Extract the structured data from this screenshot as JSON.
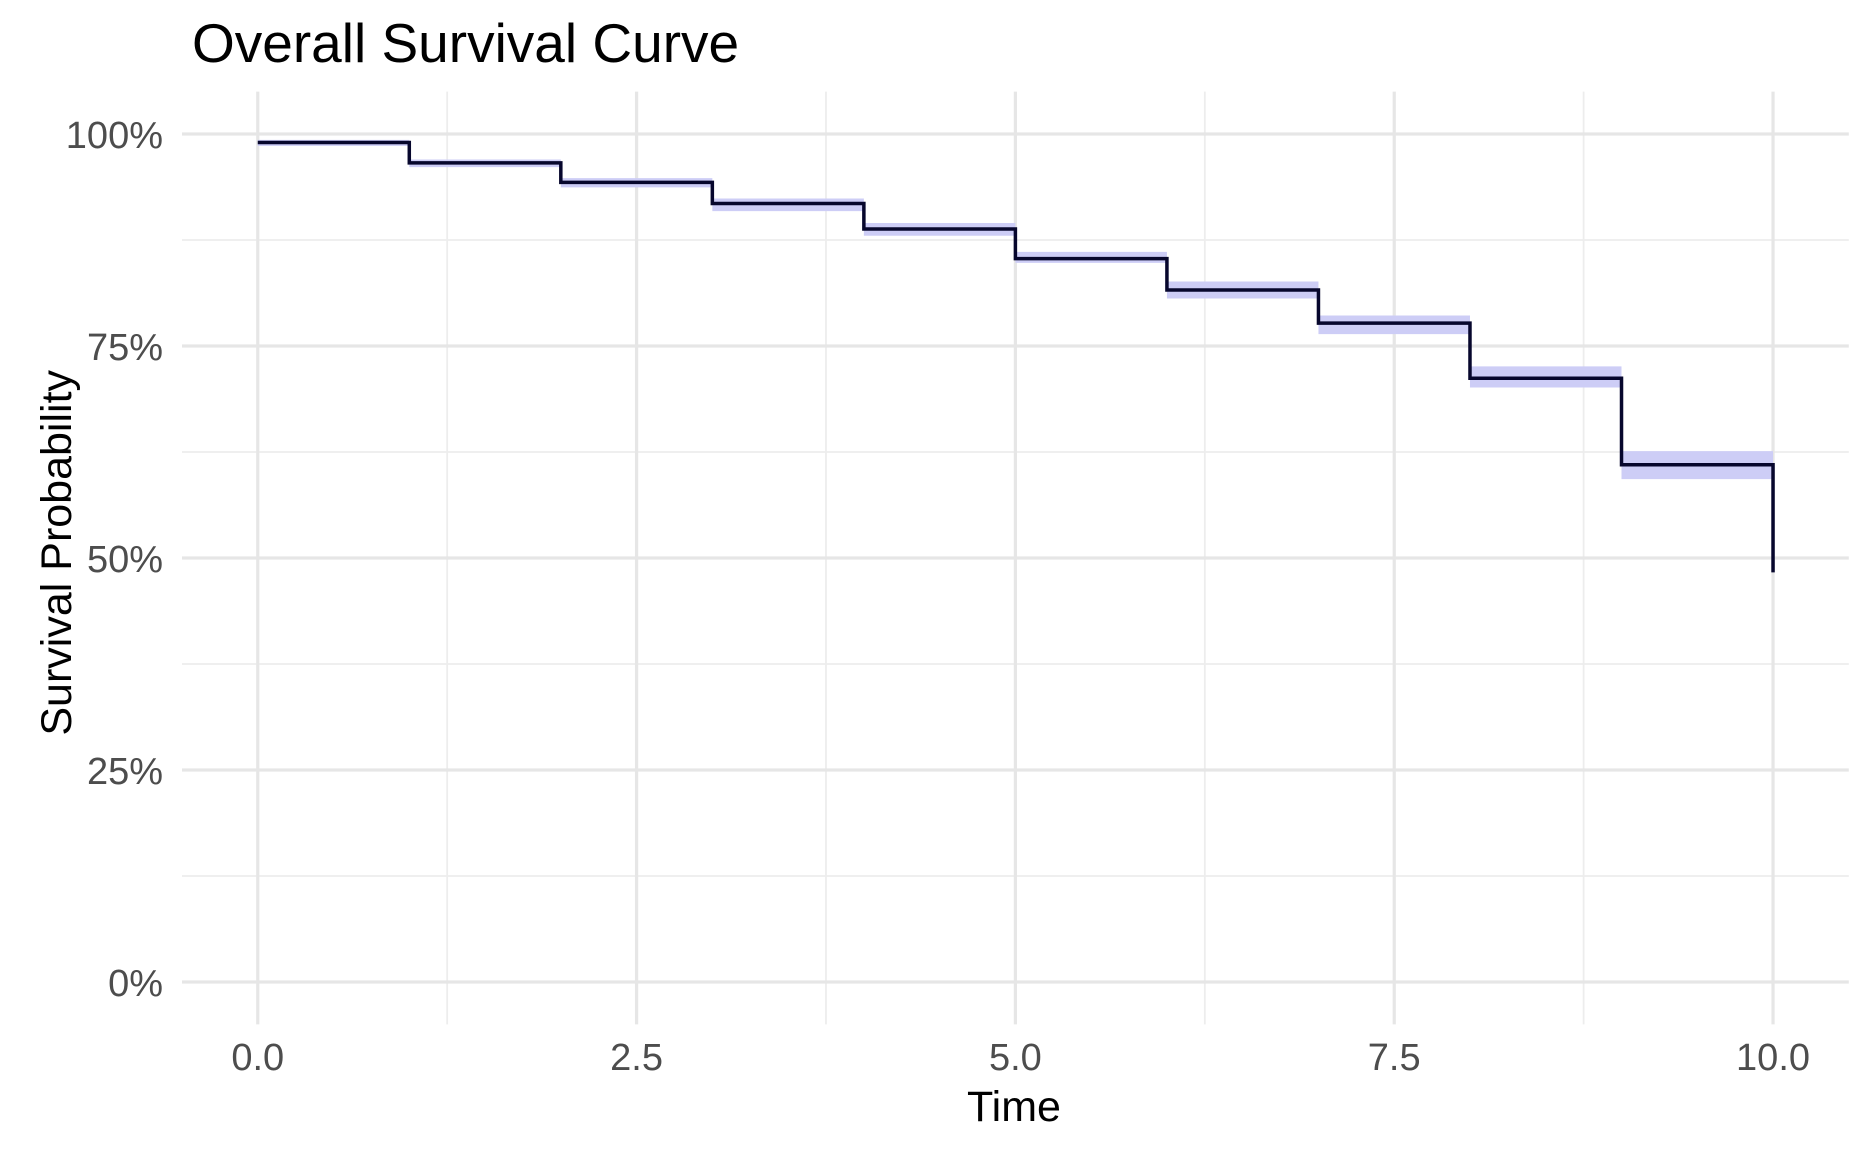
{
  "chart_data": {
    "type": "line",
    "subtype": "kaplan-meier-step",
    "title": "Overall Survival Curve",
    "xlabel": "Time",
    "ylabel": "Survival Probability",
    "x_ticks": {
      "values": [
        0,
        2.5,
        5,
        7.5,
        10
      ],
      "labels": [
        "0.0",
        "2.5",
        "5.0",
        "7.5",
        "10.0"
      ]
    },
    "y_ticks": {
      "values": [
        0,
        25,
        50,
        75,
        100
      ],
      "labels": [
        "0%",
        "25%",
        "50%",
        "75%",
        "100%"
      ]
    },
    "xlim": [
      -0.5,
      10.5
    ],
    "ylim_pct": [
      -5,
      105
    ],
    "grid": {
      "major": true,
      "minor": true,
      "major_color": "#e6e6e6",
      "minor_color": "#ededed"
    },
    "background_color": "#ffffff",
    "tick_label_color": "#4d4d4d",
    "legend": "none",
    "series": [
      {
        "name": "Overall Survival",
        "step_times": [
          0,
          1,
          2,
          3,
          4,
          5,
          6,
          7,
          8,
          9,
          10
        ],
        "survival_pct": [
          99.0,
          96.6,
          94.3,
          91.8,
          88.8,
          85.3,
          81.6,
          77.7,
          71.2,
          61.0,
          48.3
        ],
        "ci_upper_pct": [
          99.3,
          97.0,
          94.8,
          92.4,
          89.5,
          86.1,
          82.6,
          78.6,
          72.6,
          62.6
        ],
        "ci_lower_pct": [
          98.6,
          96.1,
          93.7,
          90.9,
          88.0,
          84.8,
          80.6,
          76.4,
          70.1,
          59.3
        ],
        "line_color": "#07072d",
        "ci_fill_color": "#cdcdf6"
      }
    ]
  }
}
